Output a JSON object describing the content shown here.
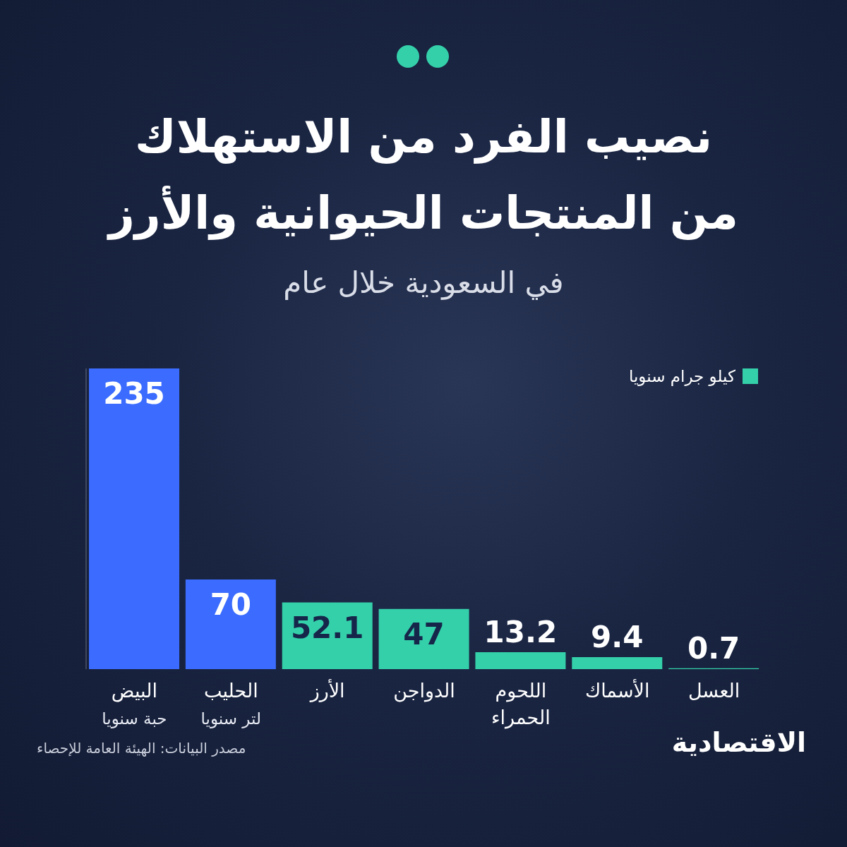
{
  "chart_data": {
    "type": "bar",
    "title": "نصيب الفرد من الاستهلاك من المنتجات الحيوانية والأرز",
    "title_lines": [
      "نصيب الفرد من الاستهلاك",
      "من المنتجات الحيوانية والأرز"
    ],
    "subtitle": "في السعودية خلال عام",
    "categories": [
      "البيض",
      "الحليب",
      "الأرز",
      "الدواجن",
      "اللحوم الحمراء",
      "الأسماك",
      "العسل"
    ],
    "units": [
      "حبة سنويا",
      "لتر سنويا",
      null,
      null,
      null,
      null,
      null
    ],
    "values": [
      235,
      70,
      52.1,
      47,
      13.2,
      9.4,
      0.7
    ],
    "colors": [
      "#3b6cff",
      "#3b6cff",
      "#34d0aa",
      "#34d0aa",
      "#34d0aa",
      "#34d0aa",
      "#34d0aa"
    ],
    "ylim": [
      0,
      235
    ],
    "tick_labels": "x",
    "data_labels": true,
    "grid": false,
    "legend": "top-right",
    "legend_entries": [
      {
        "name": "كيلو جرام سنويا",
        "color": "#34d0aa"
      }
    ],
    "source": "مصدر البيانات: الهيئة العامة للإحصاء",
    "brand": "الاقتصادية"
  }
}
